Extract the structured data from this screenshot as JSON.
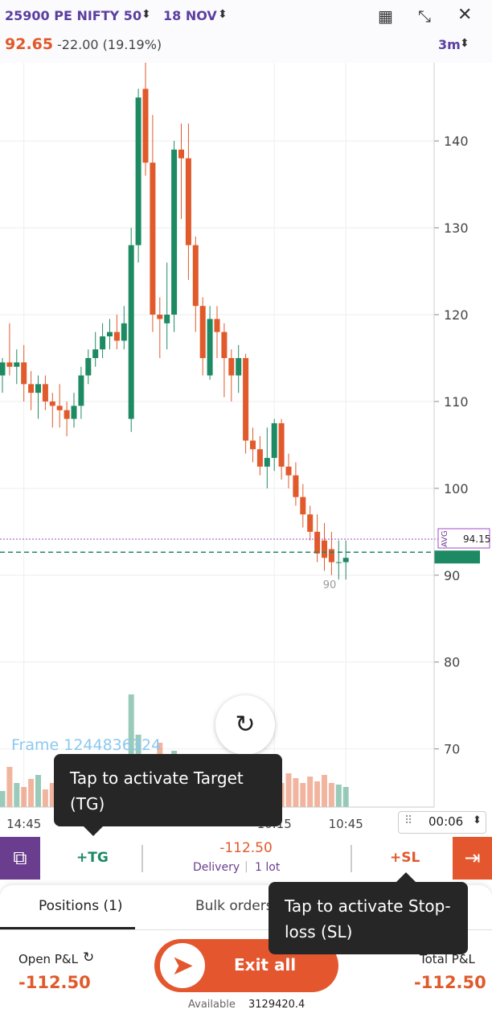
{
  "header": {
    "instrument": "25900 PE NIFTY 50",
    "expiry": "18 NOV",
    "price": "92.65",
    "change": "-22.00 (19.19%)",
    "interval": "3m"
  },
  "chart_data": {
    "type": "candlestick",
    "categories": [
      null,
      null,
      null,
      "14:45",
      null,
      null,
      null,
      null,
      null,
      null,
      null,
      null,
      null,
      null,
      null,
      null,
      null,
      null,
      null,
      null,
      null,
      null,
      null,
      null,
      null,
      null,
      null,
      null,
      null,
      null,
      null,
      null,
      null,
      null,
      null,
      null,
      null,
      null,
      "10:15",
      null,
      null,
      null,
      null,
      null,
      null,
      null,
      null,
      null,
      "10:45"
    ],
    "open": [
      113,
      114.5,
      114,
      114.5,
      112,
      111,
      112,
      110,
      109.5,
      109,
      108,
      109.5,
      113,
      115,
      116,
      117.5,
      118,
      117,
      108,
      128,
      146,
      137.5,
      120,
      119,
      120,
      139,
      138,
      128,
      121,
      113,
      119.5,
      118,
      115,
      113,
      115,
      105.5,
      104.5,
      102.5,
      103.5,
      107.5,
      102.5,
      101.5,
      99,
      97,
      95,
      94,
      93,
      91.5,
      91.5
    ],
    "high": [
      115,
      119,
      116,
      116.5,
      113.5,
      113,
      113,
      111,
      112,
      110,
      111,
      114,
      116,
      118,
      119,
      119.5,
      120,
      121,
      130,
      146,
      149,
      143,
      122,
      126,
      140,
      142,
      142,
      129,
      122,
      121,
      121,
      119,
      116,
      116.5,
      115.5,
      107,
      106,
      107,
      108,
      108,
      104,
      103,
      100.5,
      98,
      97,
      96,
      95,
      94,
      94
    ],
    "low": [
      111,
      113,
      112,
      110,
      109,
      108,
      109,
      107,
      107,
      106,
      107,
      108,
      112,
      114,
      115,
      116,
      116,
      116,
      106.5,
      126,
      136,
      118,
      115,
      116,
      118,
      131,
      124,
      118,
      113,
      112.5,
      115,
      110.5,
      110,
      111,
      104,
      103,
      101.5,
      100,
      102,
      101,
      100,
      98,
      95.5,
      94,
      91.5,
      90.5,
      90,
      89.5,
      89.5
    ],
    "close": [
      114.5,
      114,
      114.5,
      112,
      111,
      112,
      110,
      109.5,
      109,
      108,
      109.5,
      113,
      115,
      116,
      117.5,
      118,
      117,
      119,
      128,
      145,
      137.5,
      120,
      119.5,
      120,
      139,
      138,
      128,
      121,
      115,
      119.5,
      118,
      115,
      113,
      115,
      105.5,
      104.5,
      102.5,
      103.5,
      107.5,
      102.5,
      101.5,
      99,
      97,
      95,
      92.5,
      92,
      91.5,
      91.5,
      92
    ],
    "volume": [
      20,
      50,
      30,
      25,
      35,
      40,
      22,
      30,
      28,
      25,
      45,
      55,
      30,
      35,
      28,
      40,
      36,
      45,
      140,
      90,
      60,
      50,
      80,
      45,
      70,
      38,
      40,
      30,
      25,
      35,
      30,
      28,
      22,
      30,
      45,
      38,
      40,
      32,
      28,
      30,
      42,
      36,
      30,
      38,
      32,
      40,
      30,
      28,
      25
    ],
    "up_color": "#1e8a63",
    "down_color": "#e05a2b",
    "ylim": [
      63.3,
      149
    ],
    "yticks": [
      70,
      80,
      90,
      100,
      110,
      120,
      130,
      140
    ],
    "avg_label": "AVG",
    "avg": 94.15,
    "last": 92.65,
    "low_mark": 90,
    "timer": "00:06",
    "watermark": "Frame 1244836324"
  },
  "order_bar": {
    "target": "+TG",
    "pnl": "-112.50",
    "product": "Delivery",
    "qty": "1 lot",
    "stoploss": "+SL"
  },
  "tabs": [
    "Positions (1)",
    "Bulk orders"
  ],
  "footer": {
    "open_pnl_label": "Open P&L",
    "open_pnl": "-112.50",
    "exit": "Exit all",
    "total_pnl_label": "Total P&L",
    "total_pnl": "-112.50",
    "available_label": "Available",
    "available": "3129420.4"
  },
  "tooltips": {
    "target": "Tap to activate Target (TG)",
    "stoploss": "Tap to activate Stop-loss (SL)"
  }
}
